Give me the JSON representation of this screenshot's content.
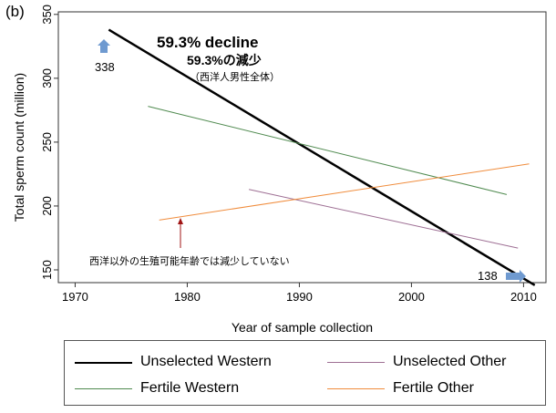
{
  "panel_label": "(b)",
  "colors": {
    "unselected_western": "#000000",
    "unselected_other": "#9e6f94",
    "fertile_western": "#4f8a4f",
    "fertile_other": "#f08c3c",
    "annotation_arrow_blue": "#6f9ad0",
    "annotation_arrow_red": "#a01414",
    "plot_border": "#333333"
  },
  "chart_data": {
    "type": "line",
    "title": "",
    "xlabel": "Year of sample collection",
    "ylabel": "Total sperm count (million)",
    "xlim": [
      1968.5,
      2012
    ],
    "ylim": [
      140,
      352
    ],
    "xticks": [
      1970,
      1980,
      1990,
      2000,
      2010
    ],
    "yticks": [
      150,
      200,
      250,
      300,
      350
    ],
    "grid": false,
    "legend_position": "bottom",
    "series": [
      {
        "name": "Unselected Western",
        "key": "unselected_western",
        "x": [
          1973,
          2011
        ],
        "y": [
          338,
          138
        ]
      },
      {
        "name": "Fertile Western",
        "key": "fertile_western",
        "x": [
          1976.5,
          2008.5
        ],
        "y": [
          278,
          209
        ]
      },
      {
        "name": "Unselected Other",
        "key": "unselected_other",
        "x": [
          1985.5,
          2009.5
        ],
        "y": [
          213,
          167
        ]
      },
      {
        "name": "Fertile Other",
        "key": "fertile_other",
        "x": [
          1977.5,
          2010.5
        ],
        "y": [
          189,
          233
        ]
      }
    ],
    "annotations": {
      "decline_main": "59.3% decline",
      "decline_japanese": "59.3%の減少",
      "decline_note": "（西洋人男性全体）",
      "value_start": "338",
      "value_end": "138",
      "other_note": "西洋以外の生殖可能年齢では減少していない"
    }
  }
}
